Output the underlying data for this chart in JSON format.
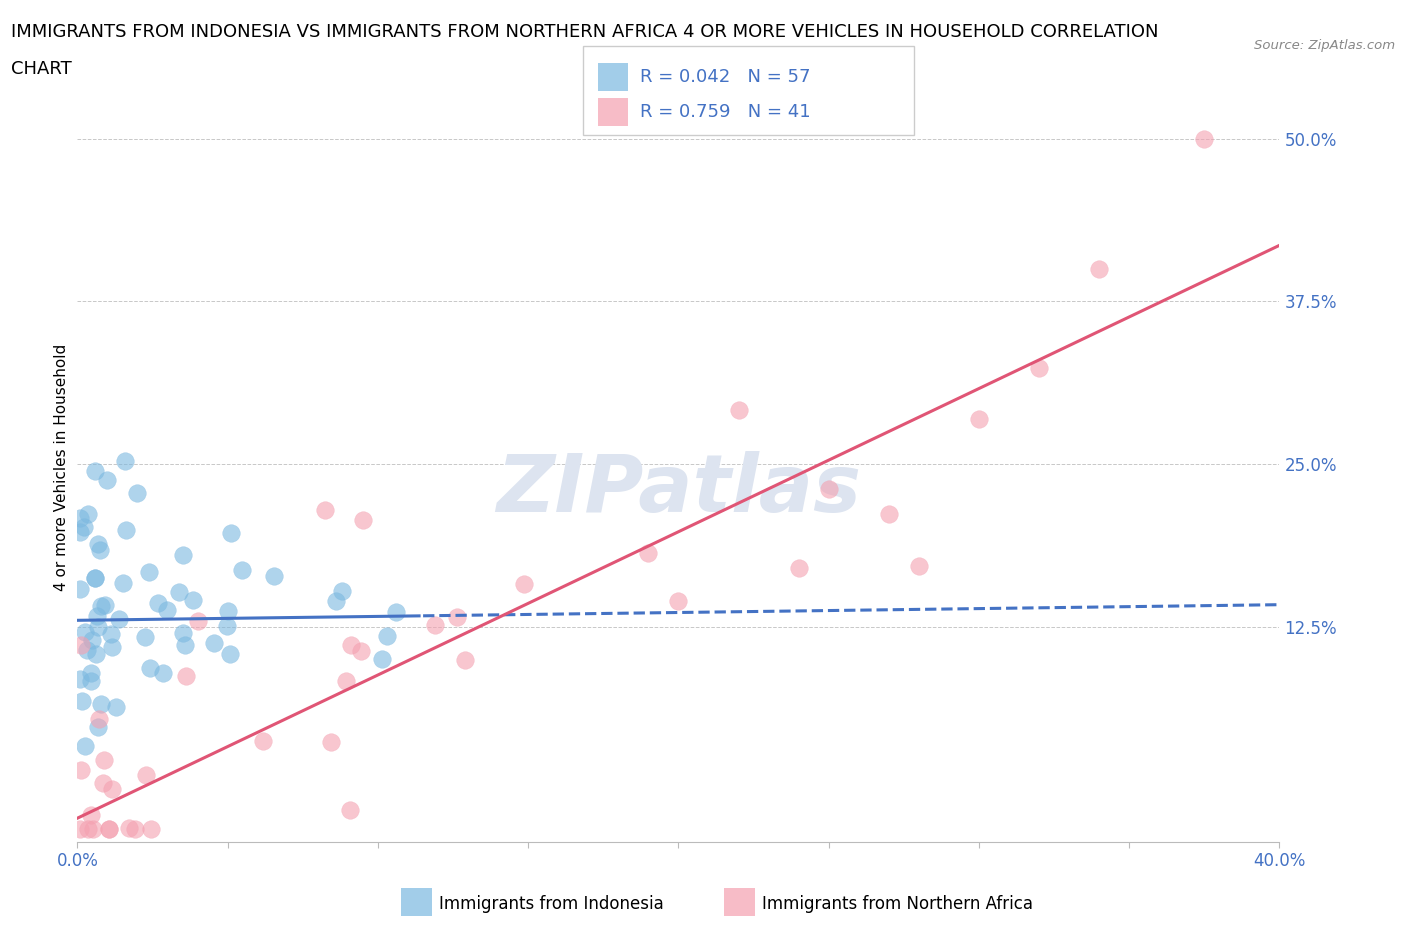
{
  "title_line1": "IMMIGRANTS FROM INDONESIA VS IMMIGRANTS FROM NORTHERN AFRICA 4 OR MORE VEHICLES IN HOUSEHOLD CORRELATION",
  "title_line2": "CHART",
  "source": "Source: ZipAtlas.com",
  "ylabel": "4 or more Vehicles in Household",
  "xlim": [
    0.0,
    0.4
  ],
  "ylim": [
    -0.04,
    0.535
  ],
  "yticks": [
    0.0,
    0.125,
    0.25,
    0.375,
    0.5
  ],
  "ytick_labels": [
    "",
    "12.5%",
    "25.0%",
    "37.5%",
    "50.0%"
  ],
  "indonesia_color": "#7bb8e0",
  "northern_africa_color": "#f4a0b0",
  "trend_indonesia_color": "#4472c4",
  "trend_northern_africa_color": "#e05575",
  "watermark": "ZIPatlas",
  "legend_R_indonesia": "R = 0.042",
  "legend_N_indonesia": "N = 57",
  "legend_R_northern_africa": "R = 0.759",
  "legend_N_northern_africa": "N = 41",
  "background_color": "#ffffff",
  "grid_color": "#c8c8c8",
  "tick_label_color": "#4472c4",
  "axis_label_color": "#4472c4",
  "watermark_color": "#dde4f0",
  "title_fontsize": 13,
  "axis_label_fontsize": 11,
  "tick_fontsize": 12,
  "legend_fontsize": 13,
  "indo_trend_intercept": 0.13,
  "indo_trend_slope": 0.03,
  "na_trend_intercept": -0.022,
  "na_trend_slope": 1.1
}
